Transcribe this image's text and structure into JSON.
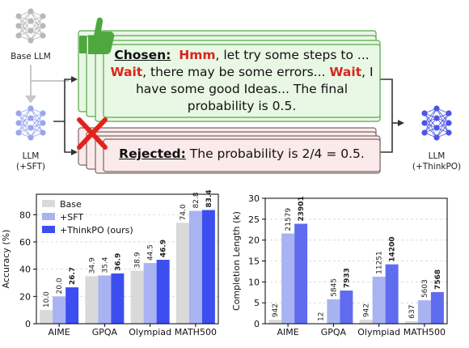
{
  "diagram": {
    "base_llm_label": "Base LLM",
    "sft_llm_label_line1": "LLM",
    "sft_llm_label_line2": "(+SFT)",
    "thinkpo_llm_label_line1": "LLM",
    "thinkpo_llm_label_line2": "(+ThinkPO)",
    "chosen": {
      "label": "Chosen:",
      "line1_kw": "Hmm",
      "line1_rest": ", let try some steps to ...",
      "line2_kw1": "Wait",
      "line2_mid": ", there may be some errors... ",
      "line2_kw2": "Wait",
      "line2_end": ", I",
      "line3": "have some good Ideas... The final",
      "line4": "probability is 0.5."
    },
    "rejected": {
      "label": "Rejected:",
      "text": " The probability is 2/4 = 0.5."
    },
    "colors": {
      "gray_net": "#b8b8b8",
      "sft_net": "#9aa6ee",
      "thinkpo_net": "#4b55e6",
      "chosen_fill": "#e9f7e5",
      "chosen_border": "#58a849",
      "rejected_fill": "#fbeaea",
      "rejected_border": "#7a6767",
      "thumb": "#4ea83e",
      "cross": "#e2231a"
    }
  },
  "chart_data": [
    {
      "type": "bar",
      "ylabel": "Accuracy (%)",
      "categories": [
        "AIME",
        "GPQA",
        "Olympiad",
        "MATH500"
      ],
      "ylim": [
        0,
        95
      ],
      "yticks": [
        0,
        20,
        40,
        60,
        80
      ],
      "legend_position": "top-left",
      "series": [
        {
          "name": "Base",
          "color": "#d9d9d9",
          "values": [
            10.0,
            34.9,
            38.9,
            74.0
          ],
          "labels": [
            "10.0",
            "34.9",
            "38.9",
            "74.0"
          ]
        },
        {
          "name": "+SFT",
          "color": "#a9b3f2",
          "values": [
            20.0,
            35.4,
            44.5,
            82.8
          ],
          "labels": [
            "20.0",
            "35.4",
            "44.5",
            "82.8"
          ]
        },
        {
          "name": "+ThinkPO (ours)",
          "color": "#3d4ef0",
          "values": [
            26.7,
            36.9,
            46.9,
            83.4
          ],
          "labels": [
            "26.7",
            "36.9",
            "46.9",
            "83.4"
          ],
          "bold_labels": true
        }
      ]
    },
    {
      "type": "bar",
      "ylabel": "Completion Length (k)",
      "categories": [
        "AIME",
        "GPQA",
        "Olympiad",
        "MATH500"
      ],
      "ylim": [
        0,
        30
      ],
      "yticks": [
        0,
        5,
        10,
        15,
        20,
        25,
        30
      ],
      "series": [
        {
          "name": "Base",
          "color": "#d9d9d9",
          "values": [
            0.942,
            0.012,
            0.942,
            0.637
          ],
          "labels": [
            "942",
            "12",
            "942",
            "637"
          ]
        },
        {
          "name": "+SFT",
          "color": "#a9b3f2",
          "values": [
            21.579,
            5.845,
            11.251,
            5.603
          ],
          "labels": [
            "21579",
            "5845",
            "11251",
            "5603"
          ]
        },
        {
          "name": "+ThinkPO",
          "color": "#5f6cf0",
          "values": [
            23.901,
            7.933,
            14.2,
            7.568
          ],
          "labels": [
            "23901",
            "7933",
            "14200",
            "7568"
          ],
          "bold_labels": true
        }
      ]
    }
  ]
}
